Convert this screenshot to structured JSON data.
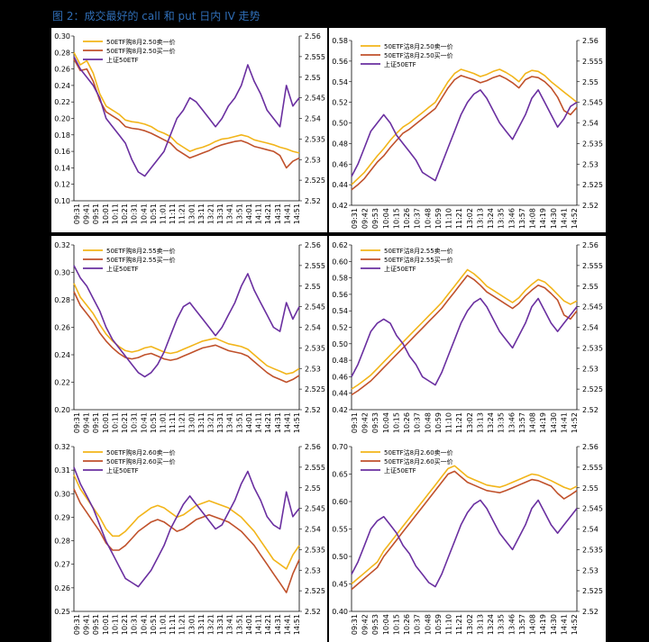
{
  "caption": "图 2：成交最好的 call 和 put 日内 IV 走势",
  "colors": {
    "call": "#f2b51a",
    "put": "#c0512b",
    "etf": "#6a2fa0",
    "background": "#000000",
    "caption": "#2f6db5"
  },
  "time_labels_a": [
    "09:31",
    "09:41",
    "09:51",
    "10:01",
    "10:11",
    "10:21",
    "10:31",
    "10:41",
    "10:51",
    "11:01",
    "11:11",
    "11:21",
    "13:01",
    "13:11",
    "13:21",
    "13:31",
    "13:41",
    "13:51",
    "14:01",
    "14:11",
    "14:21",
    "14:31",
    "14:41",
    "14:51"
  ],
  "time_labels_b": [
    "09:31",
    "09:42",
    "09:53",
    "10:04",
    "10:15",
    "10:26",
    "10:37",
    "10:48",
    "10:59",
    "11:10",
    "11:21",
    "13:02",
    "13:13",
    "13:24",
    "13:35",
    "13:46",
    "13:57",
    "14:08",
    "14:19",
    "14:30",
    "14:41",
    "14:52"
  ],
  "chart_data": [
    {
      "type": "line",
      "time_axis": "a",
      "legend": [
        "50ETF购8月2.50卖一价",
        "50ETF购8月2.50买一价",
        "上证50ETF"
      ],
      "ylim": [
        0.1,
        0.3
      ],
      "yticks": [
        0.1,
        0.12,
        0.14,
        0.16,
        0.18,
        0.2,
        0.22,
        0.24,
        0.26,
        0.28,
        0.3
      ],
      "ydec": 2,
      "y2lim": [
        2.52,
        2.56
      ],
      "y2ticks": [
        2.52,
        2.525,
        2.53,
        2.535,
        2.54,
        2.545,
        2.55,
        2.555,
        2.56
      ],
      "series": [
        {
          "name": "50ETF购8月2.50卖一价",
          "axis": "left",
          "values": [
            0.28,
            0.265,
            0.27,
            0.255,
            0.23,
            0.215,
            0.21,
            0.205,
            0.198,
            0.196,
            0.195,
            0.193,
            0.19,
            0.185,
            0.182,
            0.178,
            0.17,
            0.165,
            0.16,
            0.163,
            0.165,
            0.168,
            0.172,
            0.175,
            0.176,
            0.178,
            0.18,
            0.178,
            0.174,
            0.172,
            0.17,
            0.168,
            0.165,
            0.163,
            0.16,
            0.158
          ]
        },
        {
          "name": "50ETF购8月2.50买一价",
          "axis": "left",
          "values": [
            0.272,
            0.258,
            0.26,
            0.245,
            0.222,
            0.208,
            0.203,
            0.198,
            0.19,
            0.188,
            0.187,
            0.185,
            0.182,
            0.178,
            0.174,
            0.17,
            0.162,
            0.157,
            0.152,
            0.155,
            0.158,
            0.161,
            0.165,
            0.168,
            0.17,
            0.172,
            0.173,
            0.17,
            0.166,
            0.164,
            0.162,
            0.16,
            0.155,
            0.14,
            0.148,
            0.152
          ]
        },
        {
          "name": "上证50ETF",
          "axis": "right",
          "values": [
            2.555,
            2.552,
            2.55,
            2.548,
            2.545,
            2.54,
            2.538,
            2.536,
            2.534,
            2.53,
            2.527,
            2.526,
            2.528,
            2.53,
            2.532,
            2.536,
            2.54,
            2.542,
            2.545,
            2.544,
            2.542,
            2.54,
            2.538,
            2.54,
            2.543,
            2.545,
            2.548,
            2.553,
            2.549,
            2.546,
            2.542,
            2.54,
            2.538,
            2.548,
            2.543,
            2.545
          ]
        }
      ]
    },
    {
      "type": "line",
      "time_axis": "b",
      "legend": [
        "50ETF沽8月2.50卖一价",
        "50ETF沽8月2.50买一价",
        "上证50ETF"
      ],
      "ylim": [
        0.42,
        0.58
      ],
      "yticks": [
        0.42,
        0.44,
        0.46,
        0.48,
        0.5,
        0.52,
        0.54,
        0.56,
        0.58
      ],
      "ydec": 2,
      "y2lim": [
        2.52,
        2.56
      ],
      "y2ticks": [
        2.52,
        2.525,
        2.53,
        2.535,
        2.54,
        2.545,
        2.55,
        2.555,
        2.56
      ],
      "series": [
        {
          "name": "50ETF沽8月2.50卖一价",
          "axis": "left",
          "values": [
            0.44,
            0.446,
            0.452,
            0.46,
            0.468,
            0.475,
            0.483,
            0.49,
            0.496,
            0.5,
            0.505,
            0.51,
            0.515,
            0.52,
            0.53,
            0.54,
            0.548,
            0.552,
            0.55,
            0.548,
            0.545,
            0.547,
            0.55,
            0.552,
            0.549,
            0.545,
            0.54,
            0.548,
            0.551,
            0.55,
            0.546,
            0.54,
            0.535,
            0.53,
            0.525,
            0.52
          ]
        },
        {
          "name": "50ETF沽8月2.50买一价",
          "axis": "left",
          "values": [
            0.435,
            0.44,
            0.446,
            0.454,
            0.462,
            0.468,
            0.476,
            0.483,
            0.49,
            0.494,
            0.499,
            0.504,
            0.509,
            0.514,
            0.524,
            0.534,
            0.542,
            0.546,
            0.544,
            0.542,
            0.539,
            0.541,
            0.544,
            0.546,
            0.543,
            0.539,
            0.534,
            0.542,
            0.545,
            0.544,
            0.54,
            0.534,
            0.525,
            0.512,
            0.508,
            0.515
          ]
        },
        {
          "name": "上证50ETF",
          "axis": "right",
          "values": [
            2.527,
            2.53,
            2.534,
            2.538,
            2.54,
            2.542,
            2.54,
            2.537,
            2.535,
            2.533,
            2.531,
            2.528,
            2.527,
            2.526,
            2.53,
            2.534,
            2.538,
            2.542,
            2.545,
            2.547,
            2.548,
            2.546,
            2.543,
            2.54,
            2.538,
            2.536,
            2.539,
            2.542,
            2.546,
            2.548,
            2.545,
            2.542,
            2.539,
            2.541,
            2.544,
            2.545
          ]
        }
      ]
    },
    {
      "type": "line",
      "time_axis": "a",
      "legend": [
        "50ETF购8月2.55卖一价",
        "50ETF购8月2.55买一价",
        "上证50ETF"
      ],
      "ylim": [
        0.2,
        0.32
      ],
      "yticks": [
        0.2,
        0.22,
        0.24,
        0.26,
        0.28,
        0.3,
        0.32
      ],
      "ydec": 2,
      "y2lim": [
        2.52,
        2.56
      ],
      "y2ticks": [
        2.52,
        2.525,
        2.53,
        2.535,
        2.54,
        2.545,
        2.55,
        2.555,
        2.56
      ],
      "series": [
        {
          "name": "50ETF购8月2.55卖一价",
          "axis": "left",
          "values": [
            0.292,
            0.282,
            0.276,
            0.27,
            0.262,
            0.255,
            0.25,
            0.246,
            0.243,
            0.242,
            0.243,
            0.245,
            0.246,
            0.244,
            0.242,
            0.241,
            0.242,
            0.244,
            0.246,
            0.248,
            0.25,
            0.251,
            0.252,
            0.25,
            0.248,
            0.247,
            0.246,
            0.244,
            0.24,
            0.236,
            0.232,
            0.23,
            0.228,
            0.226,
            0.227,
            0.23
          ]
        },
        {
          "name": "50ETF购8月2.55买一价",
          "axis": "left",
          "values": [
            0.286,
            0.276,
            0.27,
            0.264,
            0.256,
            0.25,
            0.245,
            0.241,
            0.238,
            0.237,
            0.238,
            0.24,
            0.241,
            0.239,
            0.237,
            0.236,
            0.237,
            0.239,
            0.241,
            0.243,
            0.245,
            0.246,
            0.247,
            0.245,
            0.243,
            0.242,
            0.241,
            0.239,
            0.235,
            0.231,
            0.227,
            0.224,
            0.222,
            0.22,
            0.222,
            0.225
          ]
        },
        {
          "name": "上证50ETF",
          "axis": "right",
          "values": [
            2.555,
            2.552,
            2.55,
            2.547,
            2.544,
            2.54,
            2.537,
            2.535,
            2.533,
            2.531,
            2.529,
            2.528,
            2.529,
            2.531,
            2.534,
            2.538,
            2.542,
            2.545,
            2.546,
            2.544,
            2.542,
            2.54,
            2.538,
            2.54,
            2.543,
            2.546,
            2.55,
            2.553,
            2.549,
            2.546,
            2.543,
            2.54,
            2.539,
            2.546,
            2.542,
            2.545
          ]
        }
      ]
    },
    {
      "type": "line",
      "time_axis": "b",
      "legend": [
        "50ETF沽8月2.55卖一价",
        "50ETF沽8月2.55买一价",
        "上证50ETF"
      ],
      "ylim": [
        0.42,
        0.62
      ],
      "yticks": [
        0.42,
        0.44,
        0.46,
        0.48,
        0.5,
        0.52,
        0.54,
        0.56,
        0.58,
        0.6,
        0.62
      ],
      "ydec": 2,
      "y2lim": [
        2.52,
        2.56
      ],
      "y2ticks": [
        2.52,
        2.525,
        2.53,
        2.535,
        2.54,
        2.545,
        2.55,
        2.555,
        2.56
      ],
      "series": [
        {
          "name": "50ETF沽8月2.55卖一价",
          "axis": "left",
          "values": [
            0.445,
            0.45,
            0.456,
            0.462,
            0.47,
            0.478,
            0.486,
            0.494,
            0.502,
            0.51,
            0.518,
            0.526,
            0.534,
            0.542,
            0.55,
            0.56,
            0.57,
            0.58,
            0.59,
            0.585,
            0.578,
            0.57,
            0.565,
            0.56,
            0.555,
            0.55,
            0.556,
            0.565,
            0.572,
            0.578,
            0.575,
            0.568,
            0.56,
            0.552,
            0.548,
            0.552
          ]
        },
        {
          "name": "50ETF沽8月2.55买一价",
          "axis": "left",
          "values": [
            0.438,
            0.443,
            0.449,
            0.455,
            0.463,
            0.471,
            0.479,
            0.487,
            0.495,
            0.503,
            0.511,
            0.519,
            0.527,
            0.535,
            0.543,
            0.553,
            0.563,
            0.573,
            0.583,
            0.578,
            0.571,
            0.563,
            0.558,
            0.553,
            0.548,
            0.543,
            0.549,
            0.558,
            0.565,
            0.571,
            0.568,
            0.561,
            0.553,
            0.535,
            0.53,
            0.54
          ]
        },
        {
          "name": "上证50ETF",
          "axis": "right",
          "values": [
            2.528,
            2.531,
            2.535,
            2.539,
            2.541,
            2.542,
            2.541,
            2.538,
            2.536,
            2.533,
            2.531,
            2.528,
            2.527,
            2.526,
            2.529,
            2.533,
            2.537,
            2.541,
            2.544,
            2.546,
            2.547,
            2.545,
            2.542,
            2.539,
            2.537,
            2.535,
            2.538,
            2.541,
            2.545,
            2.547,
            2.544,
            2.541,
            2.539,
            2.541,
            2.543,
            2.545
          ]
        }
      ]
    },
    {
      "type": "line",
      "time_axis": "a",
      "legend": [
        "50ETF购8月2.60卖一价",
        "50ETF购8月2.60买一价",
        "上证50ETF"
      ],
      "ylim": [
        0.25,
        0.32
      ],
      "yticks": [
        0.25,
        0.26,
        0.27,
        0.28,
        0.29,
        0.3,
        0.31,
        0.32
      ],
      "ydec": 2,
      "y2lim": [
        2.52,
        2.56
      ],
      "y2ticks": [
        2.52,
        2.525,
        2.53,
        2.535,
        2.54,
        2.545,
        2.55,
        2.555,
        2.56
      ],
      "series": [
        {
          "name": "50ETF购8月2.60卖一价",
          "axis": "left",
          "values": [
            0.308,
            0.302,
            0.298,
            0.294,
            0.29,
            0.285,
            0.282,
            0.282,
            0.284,
            0.287,
            0.29,
            0.292,
            0.294,
            0.295,
            0.294,
            0.292,
            0.29,
            0.291,
            0.293,
            0.295,
            0.296,
            0.297,
            0.296,
            0.295,
            0.294,
            0.292,
            0.29,
            0.287,
            0.284,
            0.28,
            0.276,
            0.272,
            0.27,
            0.268,
            0.274,
            0.278
          ]
        },
        {
          "name": "50ETF购8月2.60买一价",
          "axis": "left",
          "values": [
            0.302,
            0.296,
            0.292,
            0.288,
            0.284,
            0.279,
            0.276,
            0.276,
            0.278,
            0.281,
            0.284,
            0.286,
            0.288,
            0.289,
            0.288,
            0.286,
            0.284,
            0.285,
            0.287,
            0.289,
            0.29,
            0.291,
            0.29,
            0.289,
            0.288,
            0.286,
            0.284,
            0.281,
            0.278,
            0.274,
            0.27,
            0.266,
            0.262,
            0.258,
            0.266,
            0.272
          ]
        },
        {
          "name": "上证50ETF",
          "axis": "right",
          "values": [
            2.555,
            2.551,
            2.548,
            2.545,
            2.541,
            2.537,
            2.534,
            2.531,
            2.528,
            2.527,
            2.526,
            2.528,
            2.53,
            2.533,
            2.536,
            2.54,
            2.543,
            2.546,
            2.548,
            2.546,
            2.544,
            2.542,
            2.54,
            2.541,
            2.544,
            2.547,
            2.551,
            2.554,
            2.55,
            2.547,
            2.543,
            2.541,
            2.54,
            2.549,
            2.543,
            2.545
          ]
        }
      ]
    },
    {
      "type": "line",
      "time_axis": "b",
      "legend": [
        "50ETF沽8月2.60卖一价",
        "50ETF沽8月2.60买一价",
        "上证50ETF"
      ],
      "ylim": [
        0.4,
        0.7
      ],
      "yticks": [
        0.4,
        0.45,
        0.5,
        0.55,
        0.6,
        0.65,
        0.7
      ],
      "ydec": 2,
      "y2lim": [
        2.52,
        2.56
      ],
      "y2ticks": [
        2.52,
        2.525,
        2.53,
        2.535,
        2.54,
        2.545,
        2.55,
        2.555,
        2.56
      ],
      "series": [
        {
          "name": "50ETF沽8月2.60卖一价",
          "axis": "left",
          "values": [
            0.45,
            0.46,
            0.47,
            0.48,
            0.49,
            0.51,
            0.525,
            0.54,
            0.555,
            0.57,
            0.585,
            0.6,
            0.615,
            0.63,
            0.645,
            0.66,
            0.665,
            0.655,
            0.645,
            0.64,
            0.635,
            0.63,
            0.628,
            0.626,
            0.63,
            0.635,
            0.64,
            0.645,
            0.65,
            0.648,
            0.643,
            0.638,
            0.632,
            0.626,
            0.622,
            0.628
          ]
        },
        {
          "name": "50ETF沽8月2.60买一价",
          "axis": "left",
          "values": [
            0.44,
            0.45,
            0.46,
            0.47,
            0.48,
            0.5,
            0.515,
            0.53,
            0.545,
            0.56,
            0.575,
            0.59,
            0.605,
            0.62,
            0.635,
            0.65,
            0.655,
            0.645,
            0.635,
            0.63,
            0.625,
            0.62,
            0.618,
            0.616,
            0.62,
            0.625,
            0.63,
            0.635,
            0.64,
            0.638,
            0.633,
            0.628,
            0.615,
            0.605,
            0.612,
            0.62
          ]
        },
        {
          "name": "上证50ETF",
          "axis": "right",
          "values": [
            2.529,
            2.532,
            2.536,
            2.54,
            2.542,
            2.543,
            2.541,
            2.539,
            2.536,
            2.534,
            2.531,
            2.529,
            2.527,
            2.526,
            2.529,
            2.533,
            2.537,
            2.541,
            2.544,
            2.546,
            2.547,
            2.545,
            2.542,
            2.539,
            2.537,
            2.535,
            2.538,
            2.541,
            2.545,
            2.547,
            2.544,
            2.541,
            2.539,
            2.541,
            2.543,
            2.545
          ]
        }
      ]
    }
  ]
}
